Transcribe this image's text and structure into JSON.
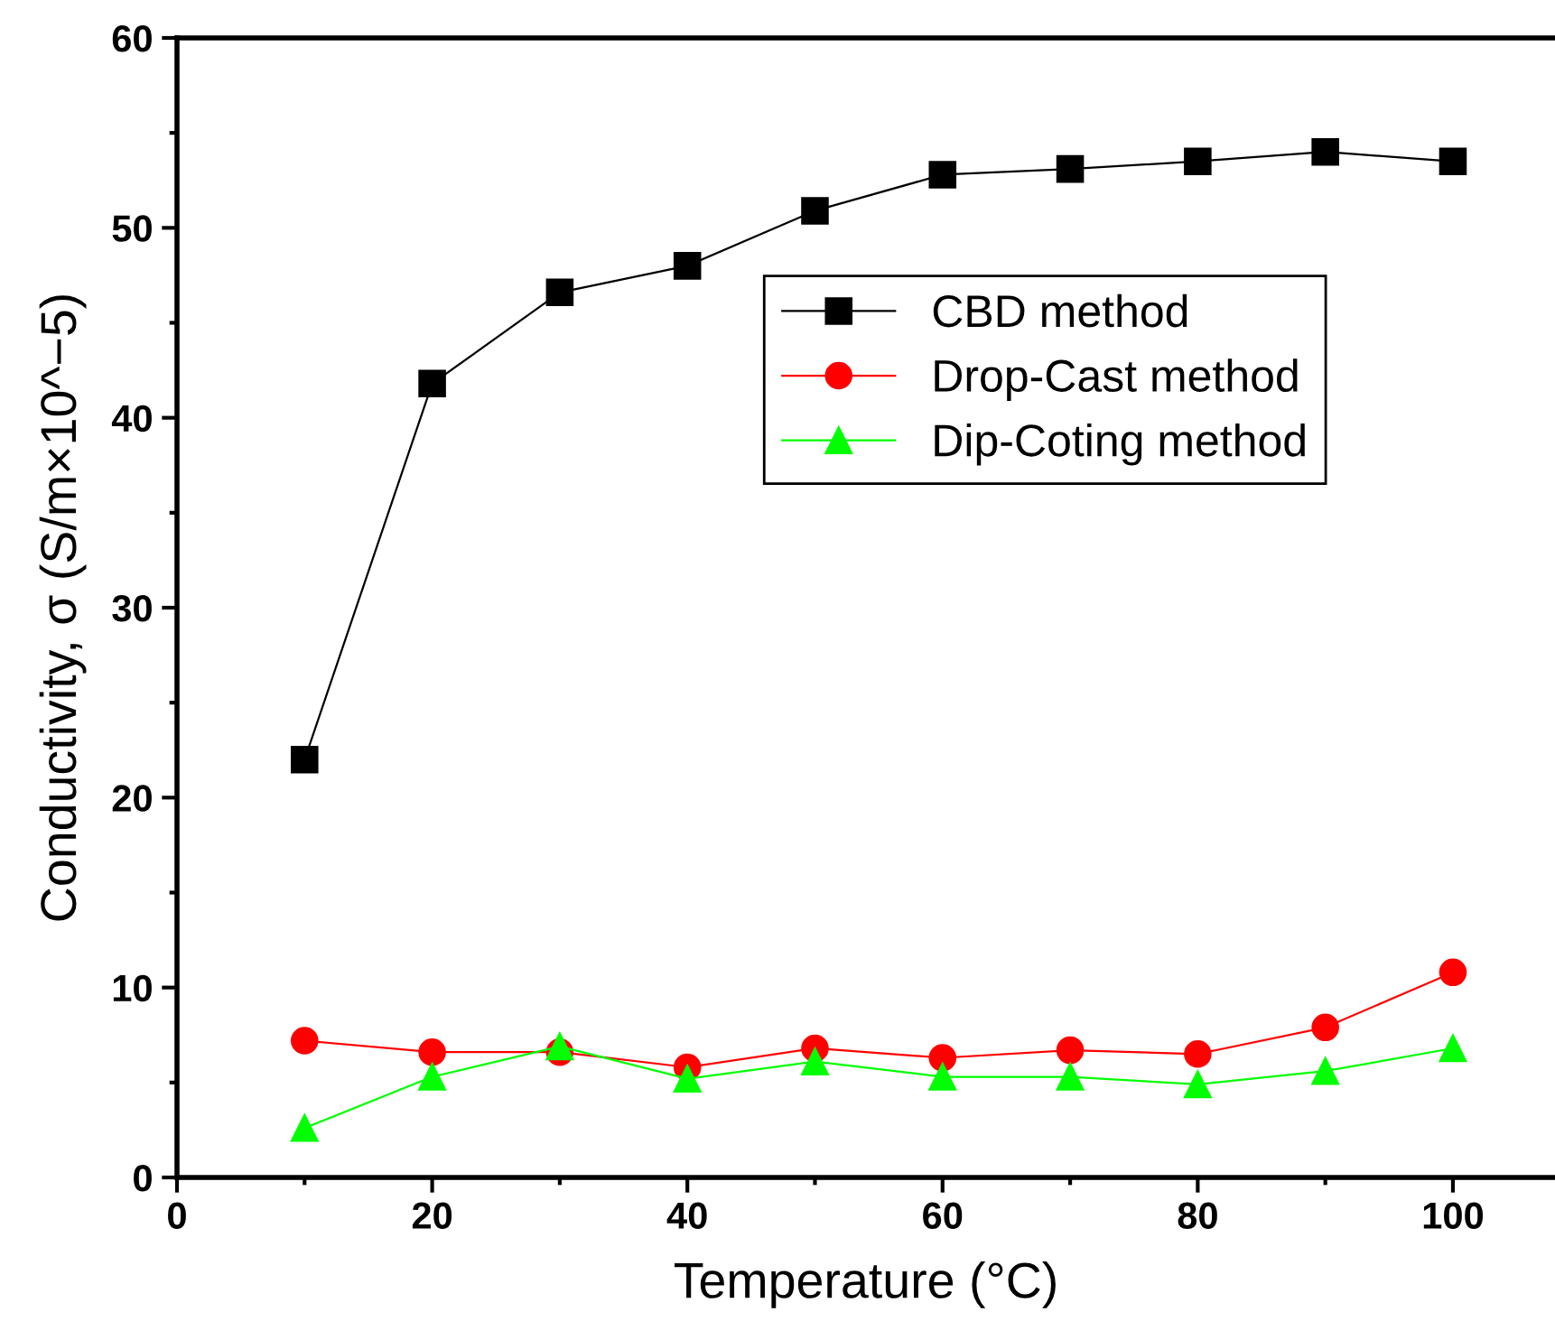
{
  "chart_data": {
    "type": "line",
    "xlabel": "Temperature (°C)",
    "ylabel": "Conductivity, σ (S/m×10^−5)",
    "x": [
      10,
      20,
      30,
      40,
      50,
      60,
      70,
      80,
      90,
      100
    ],
    "series": [
      {
        "name": "CBD method",
        "color": "#000000",
        "marker": "square",
        "values": [
          22.0,
          41.8,
          46.6,
          48.0,
          50.9,
          52.8,
          53.1,
          53.5,
          54.0,
          53.5
        ]
      },
      {
        "name": "Drop-Cast method",
        "color": "#ff0000",
        "marker": "circle",
        "values": [
          7.2,
          6.6,
          6.6,
          5.8,
          6.8,
          6.3,
          6.7,
          6.5,
          7.9,
          10.8
        ]
      },
      {
        "name": "Dip-Coting method",
        "color": "#00ff00",
        "marker": "triangle",
        "values": [
          2.6,
          5.3,
          6.9,
          5.2,
          6.1,
          5.3,
          5.3,
          4.9,
          5.6,
          6.8
        ]
      }
    ],
    "xlim": [
      0,
      108
    ],
    "ylim": [
      0,
      60
    ],
    "xticks": [
      0,
      {
        "value": 10,
        "label": null
      },
      20,
      {
        "value": 30,
        "label": null
      },
      40,
      {
        "value": 50,
        "label": null
      },
      60,
      {
        "value": 70,
        "label": null
      },
      80,
      {
        "value": 90,
        "label": null
      },
      100
    ],
    "yticks": [
      0,
      {
        "value": 5,
        "label": null
      },
      10,
      {
        "value": 15,
        "label": null
      },
      20,
      {
        "value": 25,
        "label": null
      },
      30,
      {
        "value": 35,
        "label": null
      },
      40,
      {
        "value": 45,
        "label": null
      },
      50,
      {
        "value": 55,
        "label": null
      },
      60
    ],
    "grid": false,
    "legend": "center right",
    "line_style": "solid"
  }
}
